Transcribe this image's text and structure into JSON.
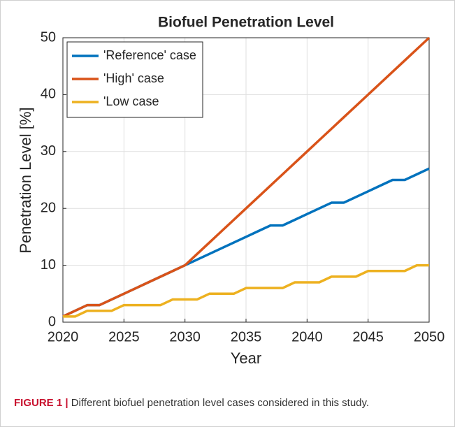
{
  "chart_data": {
    "type": "line",
    "title": "Biofuel Penetration Level",
    "x_label": "Year",
    "y_label": "Penetration Level [%]",
    "x": [
      2020,
      2021,
      2022,
      2023,
      2024,
      2025,
      2026,
      2027,
      2028,
      2029,
      2030,
      2031,
      2032,
      2033,
      2034,
      2035,
      2036,
      2037,
      2038,
      2039,
      2040,
      2041,
      2042,
      2043,
      2044,
      2045,
      2046,
      2047,
      2048,
      2049,
      2050
    ],
    "series": [
      {
        "name": "'Reference' case",
        "color": "#0072bd",
        "values": [
          1,
          2,
          3,
          3,
          4,
          5,
          6,
          7,
          8,
          9,
          10,
          11,
          12,
          13,
          14,
          15,
          16,
          17,
          17,
          18,
          19,
          20,
          21,
          21,
          22,
          23,
          24,
          25,
          25,
          26,
          27
        ]
      },
      {
        "name": "'High' case",
        "color": "#d95319",
        "values": [
          1,
          2,
          3,
          3,
          4,
          5,
          6,
          7,
          8,
          9,
          10,
          12,
          14,
          16,
          18,
          20,
          22,
          24,
          26,
          28,
          30,
          32,
          34,
          36,
          38,
          40,
          42,
          44,
          46,
          48,
          50
        ]
      },
      {
        "name": "'Low case",
        "color": "#edb120",
        "values": [
          1,
          1,
          2,
          2,
          2,
          3,
          3,
          3,
          3,
          4,
          4,
          4,
          5,
          5,
          5,
          6,
          6,
          6,
          6,
          7,
          7,
          7,
          8,
          8,
          8,
          9,
          9,
          9,
          9,
          10,
          10
        ]
      }
    ],
    "xlim": [
      2020,
      2050
    ],
    "xticks": [
      2020,
      2025,
      2030,
      2035,
      2040,
      2045,
      2050
    ],
    "ylim": [
      0,
      50
    ],
    "yticks": [
      0,
      10,
      20,
      30,
      40,
      50
    ],
    "grid": true,
    "legend": "upper-left"
  },
  "caption": {
    "label": "FIGURE 1 |",
    "text": "Different biofuel penetration level cases considered in this study."
  }
}
